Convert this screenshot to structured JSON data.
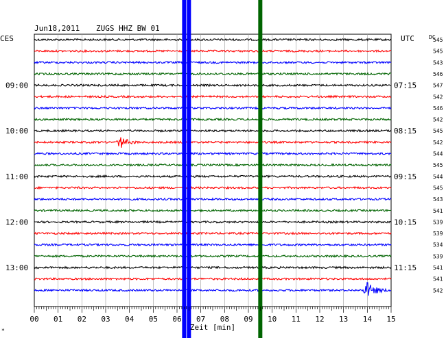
{
  "chart_data": {
    "type": "line",
    "header": {
      "date": "Jun18,2011",
      "station": "ZUGS HHZ BW 01"
    },
    "left_label": "CES",
    "right_label": "UTC",
    "dc_label": "DC",
    "xlabel": "Zeit [min]",
    "xlim": [
      0,
      15
    ],
    "x_ticks": [
      "00",
      "01",
      "02",
      "03",
      "04",
      "05",
      "06",
      "07",
      "08",
      "09",
      "10",
      "11",
      "12",
      "13",
      "14",
      "15"
    ],
    "trace_colors": [
      "#000000",
      "#ff0000",
      "#0000ff",
      "#006400"
    ],
    "left_times": [
      {
        "trace": 4,
        "label": "09:00"
      },
      {
        "trace": 8,
        "label": "10:00"
      },
      {
        "trace": 12,
        "label": "11:00"
      },
      {
        "trace": 16,
        "label": "12:00"
      },
      {
        "trace": 20,
        "label": "13:00"
      }
    ],
    "right_times": [
      {
        "trace": 4,
        "label": "07:15"
      },
      {
        "trace": 8,
        "label": "08:15"
      },
      {
        "trace": 12,
        "label": "09:15"
      },
      {
        "trace": 16,
        "label": "10:15"
      },
      {
        "trace": 20,
        "label": "11:15"
      }
    ],
    "dc_values": [
      "545",
      "545",
      "543",
      "546",
      "547",
      "542",
      "546",
      "542",
      "545",
      "542",
      "544",
      "545",
      "544",
      "545",
      "543",
      "541",
      "539",
      "539",
      "534",
      "539",
      "541",
      "541",
      "542"
    ],
    "events": [
      {
        "trace": 9,
        "x_min": 3.6,
        "width_min": 0.5,
        "amp": 0.9
      },
      {
        "trace": 22,
        "x_min": 13.95,
        "width_min": 0.6,
        "amp": 1.3
      }
    ],
    "vertical_bands": [
      {
        "x_min": 6.3,
        "color": "#0000ff"
      },
      {
        "x_min": 6.5,
        "color": "#0000ff"
      },
      {
        "x_min": 9.5,
        "color": "#006400"
      }
    ],
    "grid": true
  }
}
